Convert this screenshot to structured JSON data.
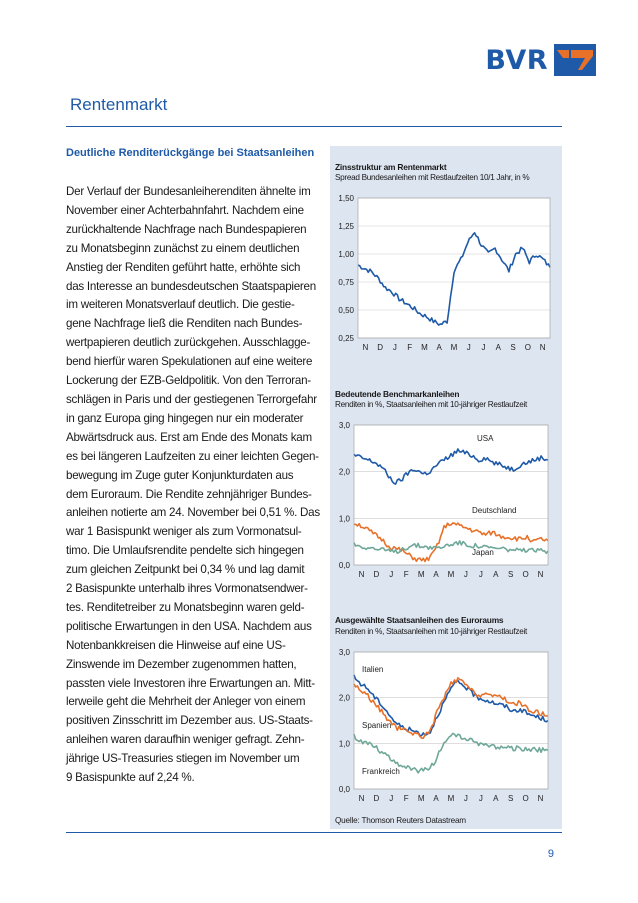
{
  "brand": {
    "name": "BVR",
    "color": "#1e5aa8",
    "accent": "#e8712a"
  },
  "header": {
    "title": "Rentenmarkt"
  },
  "article": {
    "heading": "Deutliche Renditerückgänge bei Staatsanleihen",
    "lines": [
      "Der Verlauf der Bundesanleiherenditen ähnelte im",
      "November einer Achterbahnfahrt. Nachdem eine",
      "zurückhaltende Nachfrage nach Bundespapieren",
      "zu Monatsbeginn zunächst zu einem deutlichen",
      "Anstieg der Renditen geführt hatte, erhöhte sich",
      "das Interesse an bundesdeutschen Staatspapieren",
      "im weiteren Monatsverlauf deutlich. Die gestie-",
      "gene Nachfrage ließ die Renditen nach Bundes-",
      "wertpapieren deutlich zurückgehen. Ausschlagge-",
      "bend hierfür waren Spekulationen auf eine weitere",
      "Lockerung der EZB-Geldpolitik. Von den Terroran-",
      "schlägen in Paris und der gestiegenen Terrorgefahr",
      "in ganz Europa ging hingegen nur ein moderater",
      "Abwärtsdruck aus. Erst am Ende des Monats kam",
      "es bei längeren Laufzeiten zu einer leichten Gegen-",
      "bewegung im Zuge guter Konjunkturdaten aus",
      "dem Euroraum. Die Rendite zehnjähriger Bundes-",
      "anleihen notierte am 24. November bei 0,51 %. Das",
      "war 1 Basispunkt weniger als zum Vormonatsul-",
      "timo. Die Umlaufsrendite pendelte sich hingegen",
      "zum gleichen Zeitpunkt bei 0,34 % und lag damit",
      "2 Basispunkte unterhalb ihres Vormonatsendwer-",
      "tes. Renditetreiber zu Monatsbeginn waren geld-",
      "politische Erwartungen in den USA. Nachdem aus",
      "Notenbankkreisen die Hinweise auf eine US-",
      "Zinswende im Dezember zugenommen hatten,",
      "passten viele Investoren ihre Erwartungen an. Mitt-",
      "lerweile geht die Mehrheit der Anleger von einem",
      "positiven Zinsschritt im Dezember aus. US-Staats-",
      "anleihen waren daraufhin weniger gefragt. Zehn-",
      "jährige US-Treasuries stiegen im November um",
      "9 Basispunkte auf 2,24 %."
    ]
  },
  "chart_data": [
    {
      "type": "line",
      "title": "Zinsstruktur am Rentenmarkt",
      "subtitle": "Spread Bundesanleihen mit Restlaufzeiten 10/1 Jahr, in %",
      "x_tick_labels": [
        "N",
        "D",
        "J",
        "F",
        "M",
        "A",
        "M",
        "J",
        "J",
        "A",
        "S",
        "O",
        "N"
      ],
      "y_tick_labels": [
        "1,50",
        "1,25",
        "1,00",
        "0,75",
        "0,50",
        "0,25"
      ],
      "ylim": [
        0.25,
        1.5
      ],
      "series": [
        {
          "color": "#1e5aa8",
          "values": [
            0.9,
            0.87,
            0.84,
            0.78,
            0.7,
            0.66,
            0.6,
            0.56,
            0.52,
            0.47,
            0.44,
            0.4,
            0.37,
            0.4,
            0.85,
            0.95,
            1.1,
            1.2,
            1.08,
            1.0,
            1.05,
            0.95,
            0.85,
            1.0,
            1.05,
            0.93,
            1.0,
            0.95,
            0.88
          ]
        }
      ]
    },
    {
      "type": "line",
      "title": "Bedeutende Benchmarkanleihen",
      "subtitle": "Renditen in %, Staatsanleihen mit 10-jähriger Restlaufzeit",
      "x_tick_labels": [
        "N",
        "D",
        "J",
        "F",
        "M",
        "A",
        "M",
        "J",
        "J",
        "A",
        "S",
        "O",
        "N"
      ],
      "y_tick_labels": [
        "3,0",
        "2,0",
        "1,0",
        "0,0"
      ],
      "ylim": [
        0,
        3
      ],
      "series": [
        {
          "name": "USA",
          "color": "#1e5aa8",
          "values": [
            2.35,
            2.3,
            2.25,
            2.2,
            2.1,
            1.9,
            1.75,
            1.85,
            2.0,
            2.05,
            1.95,
            2.0,
            2.15,
            2.25,
            2.35,
            2.45,
            2.4,
            2.35,
            2.25,
            2.3,
            2.2,
            2.15,
            2.1,
            2.05,
            2.15,
            2.2,
            2.25,
            2.3,
            2.25
          ]
        },
        {
          "name": "Deutschland",
          "color": "#e8712a",
          "values": [
            0.9,
            0.85,
            0.75,
            0.65,
            0.55,
            0.4,
            0.35,
            0.3,
            0.2,
            0.12,
            0.1,
            0.15,
            0.4,
            0.8,
            0.9,
            0.85,
            0.8,
            0.75,
            0.7,
            0.65,
            0.7,
            0.62,
            0.6,
            0.58,
            0.55,
            0.6,
            0.5,
            0.55,
            0.52
          ]
        },
        {
          "name": "Japan",
          "color": "#6fa898",
          "values": [
            0.45,
            0.4,
            0.38,
            0.35,
            0.32,
            0.3,
            0.28,
            0.35,
            0.4,
            0.42,
            0.4,
            0.38,
            0.36,
            0.4,
            0.45,
            0.48,
            0.45,
            0.42,
            0.4,
            0.38,
            0.36,
            0.35,
            0.34,
            0.32,
            0.3,
            0.31,
            0.3,
            0.31,
            0.3
          ]
        }
      ]
    },
    {
      "type": "line",
      "title": "Ausgewählte Staatsanleihen des Euroraums",
      "subtitle": "Renditen in %, Staatsanleihen mit 10-jähriger Restlaufzeit",
      "x_tick_labels": [
        "N",
        "D",
        "J",
        "F",
        "M",
        "A",
        "M",
        "J",
        "J",
        "A",
        "S",
        "O",
        "N"
      ],
      "y_tick_labels": [
        "3,0",
        "2,0",
        "1,0",
        "0,0"
      ],
      "ylim": [
        0,
        3
      ],
      "series": [
        {
          "name": "Italien",
          "color": "#1e5aa8",
          "values": [
            2.45,
            2.3,
            2.2,
            2.0,
            1.85,
            1.65,
            1.45,
            1.35,
            1.3,
            1.25,
            1.2,
            1.25,
            1.6,
            1.9,
            2.2,
            2.35,
            2.25,
            2.1,
            2.0,
            1.95,
            1.9,
            1.85,
            1.8,
            1.7,
            1.75,
            1.65,
            1.6,
            1.55,
            1.5
          ]
        },
        {
          "name": "Spanien",
          "color": "#e8712a",
          "values": [
            2.3,
            2.15,
            2.05,
            1.85,
            1.7,
            1.5,
            1.35,
            1.3,
            1.25,
            1.2,
            1.15,
            1.25,
            1.7,
            2.0,
            2.3,
            2.4,
            2.3,
            2.15,
            2.05,
            2.1,
            2.0,
            2.05,
            1.95,
            1.85,
            1.9,
            1.75,
            1.7,
            1.65,
            1.6
          ]
        },
        {
          "name": "Frankreich",
          "color": "#6fa898",
          "values": [
            1.15,
            1.05,
            1.0,
            0.95,
            0.8,
            0.7,
            0.6,
            0.5,
            0.45,
            0.4,
            0.4,
            0.45,
            0.7,
            1.0,
            1.2,
            1.15,
            1.1,
            1.05,
            1.0,
            0.95,
            0.95,
            0.9,
            0.92,
            0.88,
            0.9,
            0.85,
            0.88,
            0.85,
            0.85
          ]
        }
      ]
    }
  ],
  "source": "Quelle: Thomson Reuters Datastream",
  "page_number": "9"
}
